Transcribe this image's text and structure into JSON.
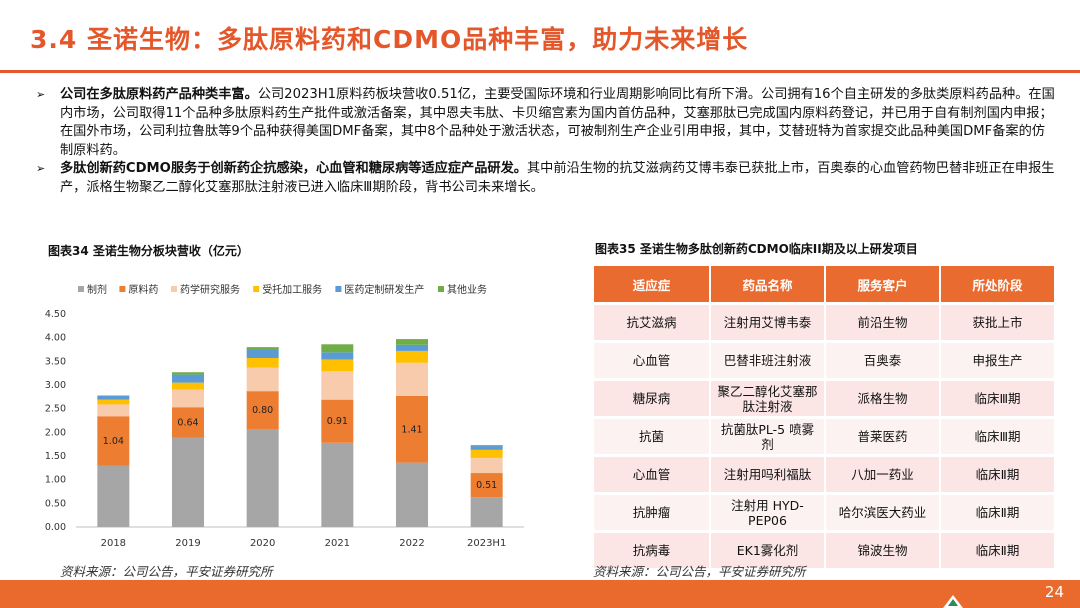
{
  "header": {
    "title": "3.4 圣诺生物：多肽原料药和CDMO品种丰富，助力未来增长"
  },
  "bullets": [
    {
      "mark": "➢",
      "lead": "公司在多肽原料药产品种类丰富。",
      "text": "公司2023H1原料药板块营收0.51亿，主要受国际环境和行业周期影响同比有所下滑。公司拥有16个自主研发的多肽类原料药品种。在国内市场，公司取得11个品种多肽原料药生产批件或激活备案，其中恩夫韦肽、卡贝缩宫素为国内首仿品种，艾塞那肽已完成国内原料药登记，并已用于自有制剂国内申报；在国外市场，公司利拉鲁肽等9个品种获得美国DMF备案，其中8个品种处于激活状态，可被制剂生产企业引用申报，其中，艾替班特为首家提交此品种美国DMF备案的仿制原料药。"
    },
    {
      "mark": "➢",
      "lead": "多肽创新药CDMO服务于创新药企抗感染，心血管和糖尿病等适应症产品研发。",
      "text": "其中前沿生物的抗艾滋病药艾博韦泰已获批上市，百奥泰的心血管药物巴替非班正在申报生产，派格生物聚乙二醇化艾塞那肽注射液已进入临床Ⅲ期阶段，背书公司未来增长。"
    }
  ],
  "chart_title": "图表34 圣诺生物分板块营收（亿元）",
  "chart_data": {
    "type": "bar",
    "stacked": true,
    "title": "图表34 圣诺生物分板块营收（亿元）",
    "categories": [
      "2018",
      "2019",
      "2020",
      "2021",
      "2022",
      "2023H1"
    ],
    "series": [
      {
        "name": "制剂",
        "color": "#a6a6a6",
        "values": [
          1.3,
          1.89,
          2.07,
          1.78,
          1.36,
          0.63
        ]
      },
      {
        "name": "原料药",
        "color": "#ed7d31",
        "values": [
          1.04,
          0.64,
          0.8,
          0.91,
          1.41,
          0.51
        ]
      },
      {
        "name": "药学研究服务",
        "color": "#f8cbad",
        "values": [
          0.25,
          0.37,
          0.5,
          0.6,
          0.7,
          0.32
        ]
      },
      {
        "name": "受托加工服务",
        "color": "#ffc000",
        "values": [
          0.1,
          0.15,
          0.2,
          0.25,
          0.25,
          0.17
        ]
      },
      {
        "name": "医药定制研发生产",
        "color": "#5b9bd5",
        "values": [
          0.08,
          0.17,
          0.19,
          0.15,
          0.13,
          0.08
        ]
      },
      {
        "name": "其他业务",
        "color": "#70ad47",
        "values": [
          0.01,
          0.05,
          0.04,
          0.17,
          0.12,
          0.02
        ]
      }
    ],
    "data_labels": {
      "series": "原料药",
      "values": [
        "1.04",
        "0.64",
        "0.80",
        "0.91",
        "1.41",
        "0.51"
      ]
    },
    "ylim": [
      0,
      4.5
    ],
    "yticks": [
      "0.00",
      "0.50",
      "1.00",
      "1.50",
      "2.00",
      "2.50",
      "3.00",
      "3.50",
      "4.00",
      "4.50"
    ],
    "grid": false,
    "legend_position": "top"
  },
  "table_title": "图表35 圣诺生物多肽创新药CDMO临床II期及以上研发项目",
  "table": {
    "headers": [
      "适应症",
      "药品名称",
      "服务客户",
      "所处阶段"
    ],
    "rows": [
      [
        "抗艾滋病",
        "注射用艾博韦泰",
        "前沿生物",
        "获批上市"
      ],
      [
        "心血管",
        "巴替非班注射液",
        "百奥泰",
        "申报生产"
      ],
      [
        "糖尿病",
        "聚乙二醇化艾塞那肽注射液",
        "派格生物",
        "临床Ⅲ期"
      ],
      [
        "抗菌",
        "抗菌肽PL-5 喷雾剂",
        "普莱医药",
        "临床Ⅲ期"
      ],
      [
        "心血管",
        "注射用吗利福肽",
        "八加一药业",
        "临床Ⅱ期"
      ],
      [
        "抗肿瘤",
        "注射用 HYD-PEP06",
        "哈尔滨医大药业",
        "临床Ⅱ期"
      ],
      [
        "抗病毒",
        "EK1雾化剂",
        "锦波生物",
        "临床Ⅱ期"
      ]
    ]
  },
  "sources": {
    "left": "资料来源：公司公告，平安证券研究所",
    "right": "资料来源：公司公告，平安证券研究所"
  },
  "footer": {
    "page": "24",
    "logo_icon": "ping-an-logo-icon"
  }
}
